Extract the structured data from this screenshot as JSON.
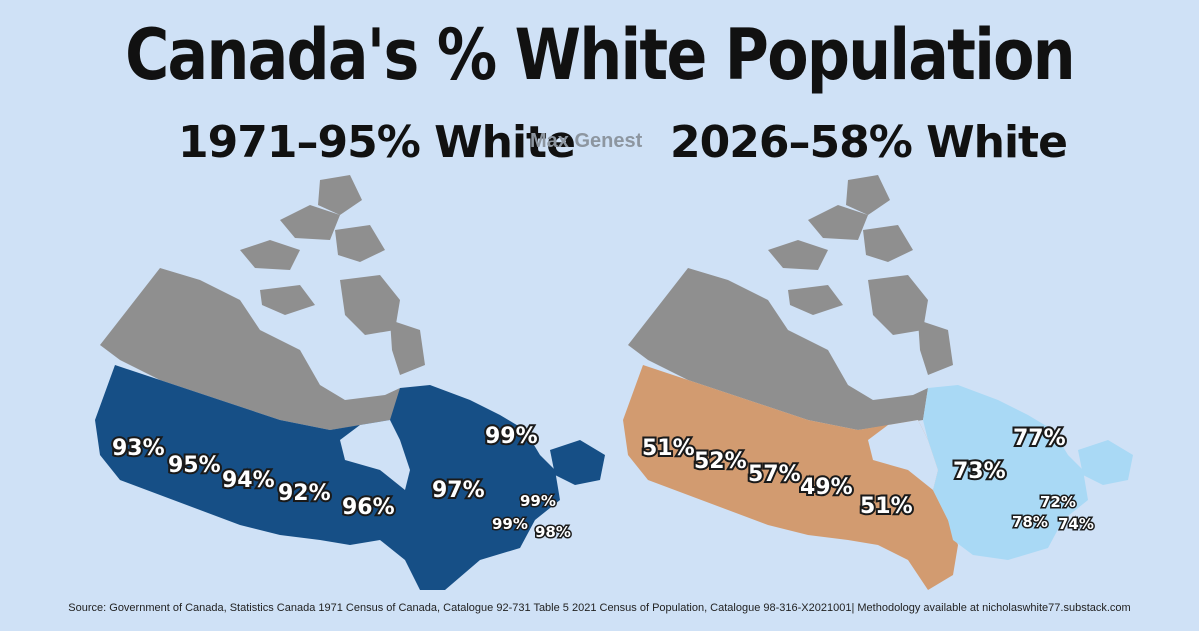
{
  "title": "Canada's % White Population",
  "left_heading": "1971–95% White",
  "right_heading": "2026–58% White",
  "watermark": "Max Genest",
  "source": "Source: Government of Canada, Statistics Canada 1971 Census of Canada, Catalogue 92-731 Table 5 2021 Census of Population, Catalogue 98-316-X2021001| Methodology available at nicholaswhite77.substack.com",
  "colors": {
    "background": "#cfe1f6",
    "territories": "#8f8f8f",
    "map1971": "#164f86",
    "map2026_west": "#d29b70",
    "map2026_east": "#a9d9f5"
  },
  "map_1971": {
    "labels": {
      "bc": "93%",
      "ab": "95%",
      "sk": "94%",
      "mb": "92%",
      "on": "96%",
      "qc": "97%",
      "nl": "99%",
      "pe": "99%",
      "nb": "99%",
      "ns": "98%"
    }
  },
  "map_2026": {
    "labels": {
      "bc": "51%",
      "ab": "52%",
      "sk": "57%",
      "mb": "49%",
      "on": "51%",
      "qc": "73%",
      "nl": "77%",
      "pe": "72%",
      "nb": "78%",
      "ns": "74%"
    }
  }
}
